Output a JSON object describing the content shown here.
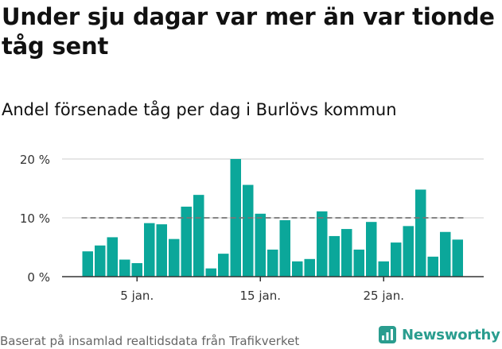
{
  "title": "Under sju dagar var mer än var tionde tåg sent",
  "subtitle": "Andel försenade tåg per dag i Burlövs kommun",
  "footer": "Baserat på insamlad realtidsdata från Trafikverket",
  "brand": {
    "name": "Newsworthy",
    "icon": "newsworthy-logo-icon"
  },
  "colors": {
    "bar": "#0ba79a",
    "grid": "#dddddd",
    "reference_line": "#777777",
    "axis": "#333333",
    "brand": "#2a9d8f"
  },
  "chart_data": {
    "type": "bar",
    "x_dates": [
      "1 jan.",
      "2 jan.",
      "3 jan.",
      "4 jan.",
      "5 jan.",
      "6 jan.",
      "7 jan.",
      "8 jan.",
      "9 jan.",
      "10 jan.",
      "11 jan.",
      "12 jan.",
      "13 jan.",
      "14 jan.",
      "15 jan.",
      "16 jan.",
      "17 jan.",
      "18 jan.",
      "19 jan.",
      "20 jan.",
      "21 jan.",
      "22 jan.",
      "23 jan.",
      "24 jan.",
      "25 jan.",
      "26 jan.",
      "27 jan.",
      "28 jan.",
      "29 jan.",
      "30 jan.",
      "31 jan."
    ],
    "values": [
      4.3,
      5.3,
      6.7,
      2.9,
      2.3,
      9.1,
      8.9,
      6.4,
      11.9,
      13.9,
      1.4,
      3.9,
      20.0,
      15.6,
      10.7,
      4.6,
      9.6,
      2.6,
      3.0,
      11.1,
      6.9,
      8.1,
      4.6,
      9.3,
      2.6,
      5.8,
      8.6,
      14.8,
      3.4,
      7.6,
      6.3
    ],
    "reference_line": 10,
    "y_ticks": [
      {
        "value": 0,
        "label": "0 %"
      },
      {
        "value": 10,
        "label": "10 %"
      },
      {
        "value": 20,
        "label": "20 %"
      }
    ],
    "x_ticks": [
      {
        "index": 4,
        "label": "5 jan."
      },
      {
        "index": 14,
        "label": "15 jan."
      },
      {
        "index": 24,
        "label": "25 jan."
      }
    ],
    "ylim": [
      0,
      20
    ],
    "grid": true
  }
}
